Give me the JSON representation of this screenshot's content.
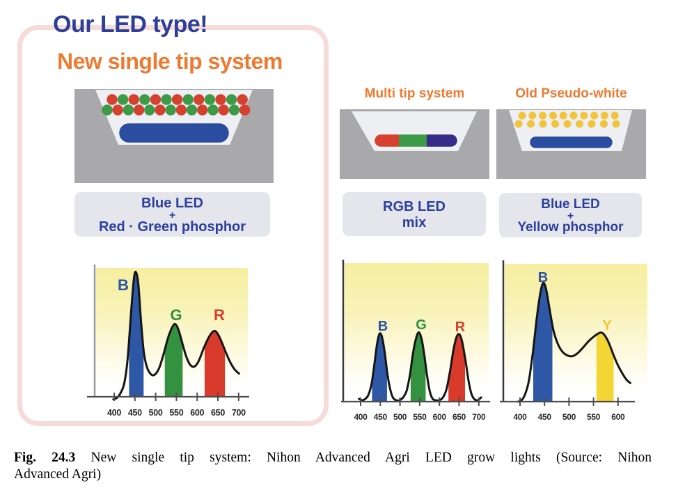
{
  "panel": {
    "main_title": "Our LED type!",
    "subtitle": "New single tip system"
  },
  "columns": [
    {
      "title": "",
      "label_box": {
        "line1": "Blue LED",
        "line2": "+",
        "line3": "Red · Green phosphor"
      }
    },
    {
      "title": "Multi tip system",
      "label_box": {
        "line1": "RGB LED",
        "line2": "mix"
      }
    },
    {
      "title": "Old Pseudo-white",
      "label_box": {
        "line1": "Blue LED",
        "line2": "+",
        "line3": "Yellow phosphor"
      }
    }
  ],
  "caption": {
    "prefix": "Fig. 24.3",
    "line1": "New single tip system: Nihon Advanced Agri LED grow lights (Source: Nihon",
    "line2": "Advanced Agri)"
  },
  "diagrams": [
    {
      "name": "single-tip",
      "phosphor_rows": [
        "RGRGRGRGRGRGR",
        "GRGRGRGRGRGRGR"
      ],
      "chip": "blue"
    },
    {
      "name": "multi-tip",
      "chip_segments": [
        "red",
        "green",
        "navy"
      ]
    },
    {
      "name": "pseudo-white",
      "phosphor_rows": [
        "YYYYYYYYYY",
        "YYYYYYYYY"
      ],
      "chip": "blue"
    }
  ],
  "colors": {
    "title_blue": "#2e3e9b",
    "accent_orange": "#ee7a31",
    "panel_pink": "#f6dbd8",
    "label_box_bg": "#e5e6ec",
    "label_text_blue": "#2b3f9e",
    "housing_gray": "#a9a9ab",
    "cavity_gray": "#edeff3",
    "red_phosphor": "#d6402e",
    "green_phosphor": "#3d9a47",
    "yellow_phosphor": "#f2c43c",
    "blue_chip": "#2a4da0",
    "navy_chip": "#372c87"
  },
  "chart_data": [
    {
      "type": "area",
      "name": "single-tip-spectrum",
      "x_ticks": [
        400,
        450,
        500,
        550,
        600,
        650,
        700
      ],
      "xlim": [
        400,
        700
      ],
      "peaks": [
        {
          "label": "B",
          "wavelength": 450,
          "height": 0.97,
          "color": "#2b53a4"
        },
        {
          "label": "G",
          "wavelength": 545,
          "height": 0.57,
          "color": "#2f9040"
        },
        {
          "label": "R",
          "wavelength": 643,
          "height": 0.51,
          "color": "#d83a2c"
        }
      ],
      "bands": [
        {
          "color": "#2e58a6",
          "from": 436,
          "to": 471
        },
        {
          "color": "#349140",
          "from": 522,
          "to": 565
        },
        {
          "color": "#d83a2c",
          "from": 618,
          "to": 667
        }
      ],
      "curve": [
        [
          398,
          -0.02
        ],
        [
          406,
          -0.01
        ],
        [
          414,
          0.02
        ],
        [
          424,
          0.1
        ],
        [
          432,
          0.28
        ],
        [
          440,
          0.62
        ],
        [
          447,
          0.9
        ],
        [
          452,
          0.97
        ],
        [
          458,
          0.88
        ],
        [
          464,
          0.62
        ],
        [
          471,
          0.36
        ],
        [
          478,
          0.24
        ],
        [
          487,
          0.18
        ],
        [
          497,
          0.17
        ],
        [
          508,
          0.22
        ],
        [
          519,
          0.33
        ],
        [
          530,
          0.46
        ],
        [
          540,
          0.54
        ],
        [
          547,
          0.565
        ],
        [
          555,
          0.52
        ],
        [
          564,
          0.42
        ],
        [
          574,
          0.31
        ],
        [
          584,
          0.245
        ],
        [
          594,
          0.235
        ],
        [
          604,
          0.28
        ],
        [
          615,
          0.37
        ],
        [
          626,
          0.45
        ],
        [
          636,
          0.5
        ],
        [
          644,
          0.51
        ],
        [
          652,
          0.475
        ],
        [
          661,
          0.41
        ],
        [
          671,
          0.33
        ],
        [
          681,
          0.26
        ],
        [
          691,
          0.21
        ],
        [
          701,
          0.18
        ]
      ]
    },
    {
      "type": "area",
      "name": "multi-tip-spectrum",
      "x_ticks": [
        400,
        450,
        500,
        550,
        600,
        650,
        700
      ],
      "xlim": [
        400,
        700
      ],
      "peaks": [
        {
          "label": "B",
          "wavelength": 450,
          "height": 0.49,
          "color": "#2b53a4"
        },
        {
          "label": "G",
          "wavelength": 548,
          "height": 0.5,
          "color": "#2f9040"
        },
        {
          "label": "R",
          "wavelength": 650,
          "height": 0.49,
          "color": "#d83a2c"
        }
      ],
      "bands": [
        {
          "color": "#2e58a6",
          "from": 429,
          "to": 467
        },
        {
          "color": "#349140",
          "from": 527,
          "to": 565
        },
        {
          "color": "#d83a2c",
          "from": 623,
          "to": 665
        }
      ],
      "curve": [
        [
          396,
          0.02
        ],
        [
          404,
          0.01
        ],
        [
          412,
          0.02
        ],
        [
          420,
          0.05
        ],
        [
          428,
          0.13
        ],
        [
          435,
          0.27
        ],
        [
          442,
          0.42
        ],
        [
          448,
          0.49
        ],
        [
          454,
          0.47
        ],
        [
          461,
          0.36
        ],
        [
          468,
          0.2
        ],
        [
          475,
          0.09
        ],
        [
          482,
          0.03
        ],
        [
          490,
          0.01
        ],
        [
          499,
          0.01
        ],
        [
          508,
          0.03
        ],
        [
          517,
          0.08
        ],
        [
          525,
          0.19
        ],
        [
          533,
          0.35
        ],
        [
          541,
          0.46
        ],
        [
          548,
          0.5
        ],
        [
          555,
          0.45
        ],
        [
          562,
          0.33
        ],
        [
          569,
          0.18
        ],
        [
          576,
          0.07
        ],
        [
          583,
          0.02
        ],
        [
          591,
          0.01
        ],
        [
          600,
          0.01
        ],
        [
          609,
          0.03
        ],
        [
          618,
          0.09
        ],
        [
          627,
          0.22
        ],
        [
          636,
          0.38
        ],
        [
          644,
          0.47
        ],
        [
          651,
          0.485
        ],
        [
          658,
          0.43
        ],
        [
          666,
          0.3
        ],
        [
          674,
          0.15
        ],
        [
          681,
          0.06
        ],
        [
          688,
          0.02
        ],
        [
          697,
          0.01
        ],
        [
          706,
          0.03
        ]
      ]
    },
    {
      "type": "area",
      "name": "pseudo-white-spectrum",
      "x_ticks": [
        400,
        450,
        500,
        550,
        600
      ],
      "xlim": [
        400,
        625
      ],
      "peaks": [
        {
          "label": "B",
          "wavelength": 447,
          "height": 0.86,
          "color": "#2b53a4"
        },
        {
          "label": "Y",
          "wavelength": 565,
          "height": 0.5,
          "color": "#f0c435"
        }
      ],
      "bands": [
        {
          "color": "#2e58a6",
          "from": 427,
          "to": 466
        },
        {
          "color": "#f3d633",
          "from": 556,
          "to": 591
        }
      ],
      "curve": [
        [
          396,
          0.0
        ],
        [
          403,
          0.01
        ],
        [
          410,
          0.05
        ],
        [
          418,
          0.15
        ],
        [
          426,
          0.35
        ],
        [
          434,
          0.6
        ],
        [
          441,
          0.78
        ],
        [
          447,
          0.86
        ],
        [
          453,
          0.82
        ],
        [
          460,
          0.68
        ],
        [
          468,
          0.52
        ],
        [
          477,
          0.42
        ],
        [
          487,
          0.36
        ],
        [
          497,
          0.335
        ],
        [
          507,
          0.33
        ],
        [
          517,
          0.35
        ],
        [
          528,
          0.39
        ],
        [
          539,
          0.435
        ],
        [
          550,
          0.47
        ],
        [
          560,
          0.495
        ],
        [
          567,
          0.5
        ],
        [
          574,
          0.475
        ],
        [
          582,
          0.42
        ],
        [
          590,
          0.345
        ],
        [
          599,
          0.27
        ],
        [
          608,
          0.21
        ],
        [
          617,
          0.16
        ],
        [
          625,
          0.135
        ]
      ]
    }
  ]
}
